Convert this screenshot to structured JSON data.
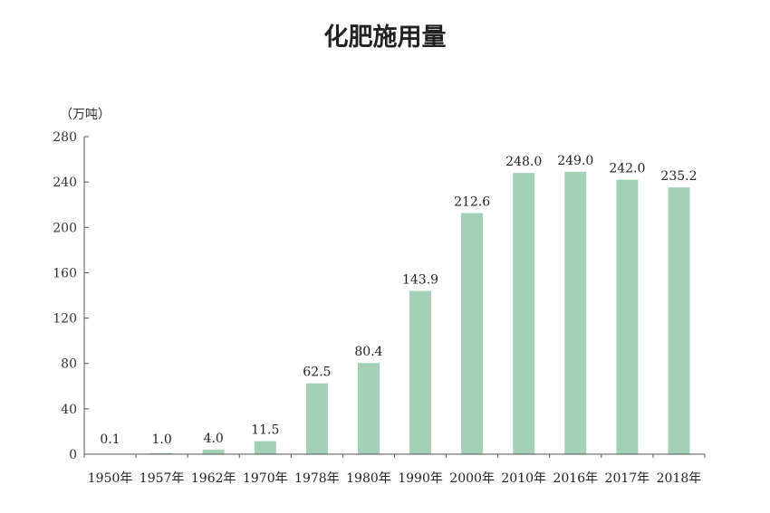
{
  "chart_data": {
    "type": "bar",
    "title": "化肥施用量",
    "ylabel": "（万吨）",
    "xlabel": "",
    "categories": [
      "1950年",
      "1957年",
      "1962年",
      "1970年",
      "1978年",
      "1980年",
      "1990年",
      "2000年",
      "2010年",
      "2016年",
      "2017年",
      "2018年"
    ],
    "values": [
      0.1,
      1.0,
      4.0,
      11.5,
      62.5,
      80.4,
      143.9,
      212.6,
      248.0,
      249.0,
      242.0,
      235.2
    ],
    "value_labels": [
      "0.1",
      "1.0",
      "4.0",
      "11.5",
      "62.5",
      "80.4",
      "143.9",
      "212.6",
      "248.0",
      "249.0",
      "242.0",
      "235.2"
    ],
    "ylim": [
      0,
      280
    ],
    "yticks": [
      0,
      40,
      80,
      120,
      160,
      200,
      240,
      280
    ],
    "grid": false,
    "legend": "none",
    "bar_color": "#a3d1b5"
  }
}
